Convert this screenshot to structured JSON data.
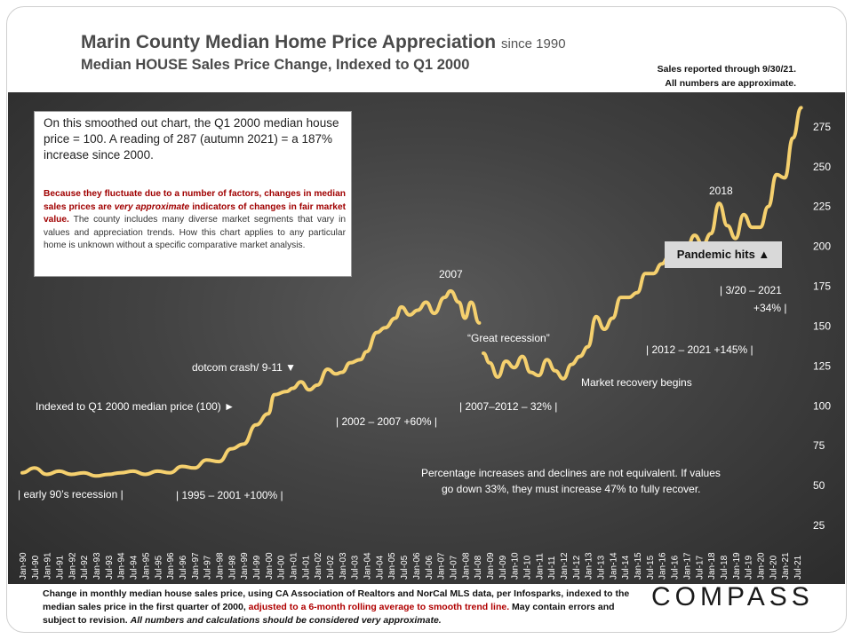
{
  "header": {
    "title": "Marin County Median Home Price Appreciation",
    "title_suffix": "since 1990",
    "subtitle": "Median HOUSE Sales Price Change, Indexed to Q1 2000",
    "reported_line1": "Sales reported through 9/30/21.",
    "reported_line2": "All numbers are approximate."
  },
  "note": {
    "main": "On this smoothed out chart, the Q1 2000 median house price = 100. A reading of 287 (autumn 2021) = a 187% increase since 2000.",
    "small_a": "Because they fluctuate due to a number of factors, changes in median sales prices are ",
    "small_b": "very approximate",
    "small_c": " indicators of changes in fair market value.",
    "small_d": " The county includes many diverse market segments that vary in values and appreciation trends. How this chart applies to any particular home is unknown without a specific comparative market analysis."
  },
  "annotations": {
    "early90s": "| early 90’s recession |",
    "r1995": "| 1995 – 2001 +100% |",
    "indexed": "Indexed to Q1 2000 median price (100) ►",
    "dotcom": "dotcom crash/ 9-11 ▼",
    "r2002": "| 2002 – 2007 +60% |",
    "y2007": "2007",
    "great_recession": "“Great recession”",
    "r2007": "| 2007–2012 – 32% |",
    "recovery": "Market recovery begins",
    "r2012": "| 2012 – 2021 +145% |",
    "y2018": "2018",
    "pandemic": "Pandemic hits ▲",
    "r2020a": "| 3/20 – 2021",
    "r2020b": "+34% |",
    "pct_note1": "Percentage increases and declines are not equivalent. If values",
    "pct_note2": "go down 33%, they must increase 47% to fully recover."
  },
  "footer": {
    "part1": "Change in monthly median house sales price, using CA Association of Realtors and NorCal MLS data, per Infosparks, indexed to the median sales price in the first quarter of 2000, ",
    "part2": "adjusted to a 6-month rolling average to smooth trend line.",
    "part3": " May contain errors and subject to revision. ",
    "part4": "All numbers and calculations should be considered very approximate."
  },
  "logo": "COMPASS",
  "chart_data": {
    "type": "line",
    "ylim": [
      25,
      300
    ],
    "yticks": [
      25,
      50,
      75,
      100,
      125,
      150,
      175,
      200,
      225,
      250,
      275
    ],
    "grid": false,
    "line_color": "#f5d06e",
    "x_start": "1990-01",
    "x_end": "2021-09",
    "x_tick_labels": [
      "Jan-90",
      "Jul-90",
      "Jan-91",
      "Jul-91",
      "Jan-92",
      "Jul-92",
      "Jan-93",
      "Jul-93",
      "Jan-94",
      "Jul-94",
      "Jan-95",
      "Jul-95",
      "Jan-96",
      "Jul-96",
      "Jan-97",
      "Jul-97",
      "Jan-98",
      "Jul-98",
      "Jan-99",
      "Jul-99",
      "Jan-00",
      "Jul-00",
      "Jan-01",
      "Jul-01",
      "Jan-02",
      "Jul-02",
      "Jan-03",
      "Jul-03",
      "Jan-04",
      "Jul-04",
      "Jan-05",
      "Jul-05",
      "Jan-06",
      "Jul-06",
      "Jan-07",
      "Jul-07",
      "Jan-08",
      "Jul-08",
      "Jan-09",
      "Jul-09",
      "Jan-10",
      "Jul-10",
      "Jan-11",
      "Jul-11",
      "Jan-12",
      "Jul-12",
      "Jan-13",
      "Jul-13",
      "Jan-14",
      "Jul-14",
      "Jan-15",
      "Jul-15",
      "Jan-16",
      "Jul-16",
      "Jan-17",
      "Jul-17",
      "Jan-18",
      "Jul-18",
      "Jan-19",
      "Jul-19",
      "Jan-20",
      "Jul-20",
      "Jan-21",
      "Jul-21"
    ],
    "series": [
      {
        "values": [
          {
            "x": "1990-01",
            "y": 58
          },
          {
            "x": "1990-07",
            "y": 61
          },
          {
            "x": "1991-01",
            "y": 57
          },
          {
            "x": "1991-07",
            "y": 59
          },
          {
            "x": "1992-01",
            "y": 57
          },
          {
            "x": "1992-07",
            "y": 58
          },
          {
            "x": "1993-01",
            "y": 56
          },
          {
            "x": "1993-07",
            "y": 57
          },
          {
            "x": "1994-01",
            "y": 58
          },
          {
            "x": "1994-07",
            "y": 59
          },
          {
            "x": "1995-01",
            "y": 57
          },
          {
            "x": "1995-07",
            "y": 59
          },
          {
            "x": "1996-01",
            "y": 58
          },
          {
            "x": "1996-07",
            "y": 62
          },
          {
            "x": "1997-01",
            "y": 61
          },
          {
            "x": "1997-07",
            "y": 66
          },
          {
            "x": "1998-01",
            "y": 65
          },
          {
            "x": "1998-07",
            "y": 73
          },
          {
            "x": "1999-01",
            "y": 76
          },
          {
            "x": "1999-07",
            "y": 88
          },
          {
            "x": "2000-01",
            "y": 95
          },
          {
            "x": "2000-04",
            "y": 107
          },
          {
            "x": "2000-10",
            "y": 109
          },
          {
            "x": "2001-01",
            "y": 111
          },
          {
            "x": "2001-05",
            "y": 115
          },
          {
            "x": "2001-09",
            "y": 110
          },
          {
            "x": "2002-01",
            "y": 113
          },
          {
            "x": "2002-06",
            "y": 123
          },
          {
            "x": "2002-10",
            "y": 120
          },
          {
            "x": "2003-01",
            "y": 121
          },
          {
            "x": "2003-05",
            "y": 127
          },
          {
            "x": "2003-10",
            "y": 129
          },
          {
            "x": "2004-01",
            "y": 134
          },
          {
            "x": "2004-06",
            "y": 146
          },
          {
            "x": "2004-10",
            "y": 149
          },
          {
            "x": "2005-03",
            "y": 155
          },
          {
            "x": "2005-06",
            "y": 162
          },
          {
            "x": "2005-10",
            "y": 157
          },
          {
            "x": "2006-02",
            "y": 160
          },
          {
            "x": "2006-06",
            "y": 165
          },
          {
            "x": "2006-10",
            "y": 158
          },
          {
            "x": "2007-03",
            "y": 168
          },
          {
            "x": "2007-06",
            "y": 172
          },
          {
            "x": "2007-10",
            "y": 165
          },
          {
            "x": "2008-01",
            "y": 155
          },
          {
            "x": "2008-04",
            "y": 165
          },
          {
            "x": "2008-08",
            "y": 152
          },
          {
            "x": "2008-10",
            "y": 133
          },
          {
            "x": "2009-01",
            "y": 127
          },
          {
            "x": "2009-05",
            "y": 118
          },
          {
            "x": "2009-09",
            "y": 128
          },
          {
            "x": "2010-01",
            "y": 124
          },
          {
            "x": "2010-05",
            "y": 131
          },
          {
            "x": "2010-09",
            "y": 121
          },
          {
            "x": "2011-01",
            "y": 119
          },
          {
            "x": "2011-05",
            "y": 129
          },
          {
            "x": "2011-09",
            "y": 122
          },
          {
            "x": "2012-01",
            "y": 117
          },
          {
            "x": "2012-05",
            "y": 126
          },
          {
            "x": "2012-09",
            "y": 131
          },
          {
            "x": "2013-01",
            "y": 137
          },
          {
            "x": "2013-05",
            "y": 156
          },
          {
            "x": "2013-09",
            "y": 148
          },
          {
            "x": "2014-01",
            "y": 155
          },
          {
            "x": "2014-05",
            "y": 168
          },
          {
            "x": "2014-09",
            "y": 168
          },
          {
            "x": "2015-01",
            "y": 171
          },
          {
            "x": "2015-05",
            "y": 183
          },
          {
            "x": "2015-09",
            "y": 183
          },
          {
            "x": "2016-01",
            "y": 189
          },
          {
            "x": "2016-05",
            "y": 195
          },
          {
            "x": "2016-09",
            "y": 193
          },
          {
            "x": "2017-01",
            "y": 198
          },
          {
            "x": "2017-05",
            "y": 207
          },
          {
            "x": "2017-09",
            "y": 201
          },
          {
            "x": "2018-01",
            "y": 208
          },
          {
            "x": "2018-05",
            "y": 227
          },
          {
            "x": "2018-09",
            "y": 213
          },
          {
            "x": "2019-01",
            "y": 205
          },
          {
            "x": "2019-05",
            "y": 220
          },
          {
            "x": "2019-09",
            "y": 212
          },
          {
            "x": "2020-01",
            "y": 212
          },
          {
            "x": "2020-05",
            "y": 225
          },
          {
            "x": "2020-09",
            "y": 245
          },
          {
            "x": "2021-01",
            "y": 243
          },
          {
            "x": "2021-05",
            "y": 268
          },
          {
            "x": "2021-09",
            "y": 287
          }
        ]
      }
    ]
  }
}
